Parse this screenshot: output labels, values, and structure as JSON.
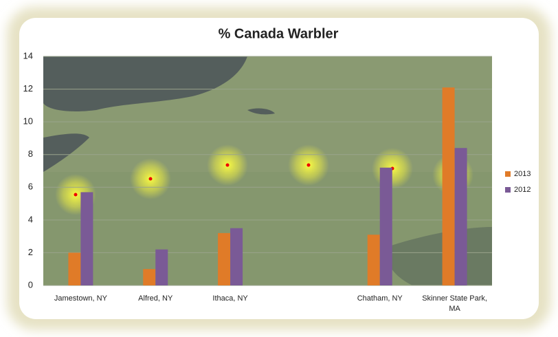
{
  "chart_data": {
    "type": "bar",
    "title": "% Canada Warbler",
    "categories": [
      "Jamestown, NY",
      "Alfred, NY",
      "Ithaca, NY",
      null,
      "Chatham, NY",
      "Skinner State Park, MA"
    ],
    "series": [
      {
        "name": "2013",
        "color": "#e07b28",
        "values": [
          2,
          1,
          3.2,
          null,
          3.1,
          12.1
        ]
      },
      {
        "name": "2012",
        "color": "#7a5a96",
        "values": [
          5.7,
          2.2,
          3.5,
          null,
          7.2,
          8.4
        ]
      }
    ],
    "ylim": [
      0,
      14
    ],
    "yticks": [
      0,
      2,
      4,
      6,
      8,
      10,
      12,
      14
    ],
    "grid": true,
    "legend": "right"
  }
}
